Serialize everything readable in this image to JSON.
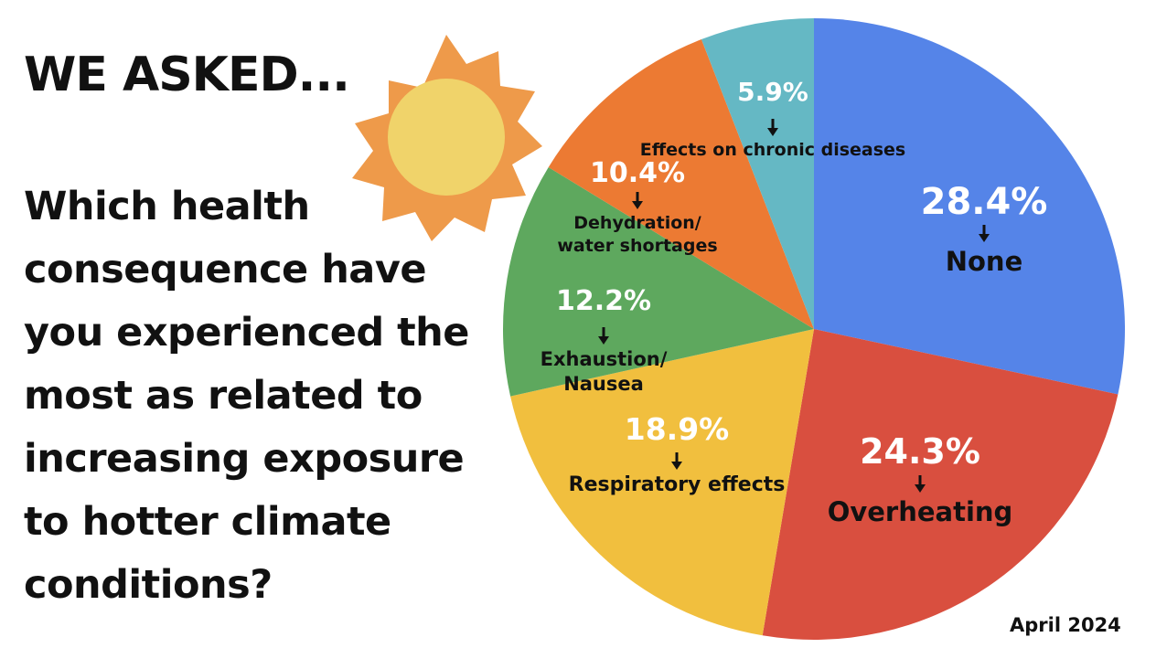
{
  "chart_data": {
    "type": "pie",
    "title": "WE ASKED...",
    "subtitle": "Which health consequence have you experienced the most as related to increasing exposure to hotter climate conditions?",
    "note": "April 2024",
    "categories": [
      "None",
      "Overheating",
      "Respiratory effects",
      "Exhaustion/\nNausea",
      "Dehydration/\nwater shortages",
      "Effects on chronic diseases"
    ],
    "values": [
      28.4,
      24.3,
      18.9,
      12.2,
      10.4,
      5.9
    ],
    "value_labels": [
      "28.4%",
      "24.3%",
      "18.9%",
      "12.2%",
      "10.4%",
      "5.9%"
    ],
    "colors": [
      "#5584e8",
      "#d94f3f",
      "#f1bf3e",
      "#5ea85e",
      "#ec7a33",
      "#65b8c4"
    ]
  }
}
